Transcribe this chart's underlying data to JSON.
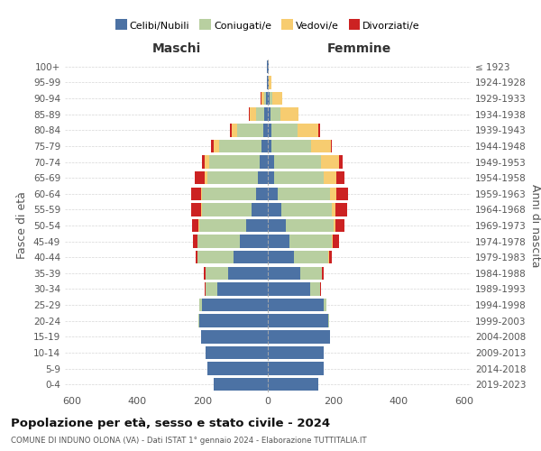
{
  "age_groups": [
    "0-4",
    "5-9",
    "10-14",
    "15-19",
    "20-24",
    "25-29",
    "30-34",
    "35-39",
    "40-44",
    "45-49",
    "50-54",
    "55-59",
    "60-64",
    "65-69",
    "70-74",
    "75-79",
    "80-84",
    "85-89",
    "90-94",
    "95-99",
    "100+"
  ],
  "birth_years": [
    "2019-2023",
    "2014-2018",
    "2009-2013",
    "2004-2008",
    "1999-2003",
    "1994-1998",
    "1989-1993",
    "1984-1988",
    "1979-1983",
    "1974-1978",
    "1969-1973",
    "1964-1968",
    "1959-1963",
    "1954-1958",
    "1949-1953",
    "1944-1948",
    "1939-1943",
    "1934-1938",
    "1929-1933",
    "1924-1928",
    "≤ 1923"
  ],
  "colors": {
    "celibe": "#4c72a4",
    "coniugato": "#b8cfa0",
    "vedovo": "#f7cc70",
    "divorziato": "#cc2222"
  },
  "maschi": {
    "celibe": [
      165,
      185,
      190,
      205,
      210,
      200,
      155,
      120,
      105,
      85,
      65,
      50,
      35,
      30,
      25,
      20,
      15,
      10,
      5,
      2,
      2
    ],
    "coniugato": [
      0,
      0,
      0,
      0,
      2,
      10,
      35,
      70,
      110,
      130,
      145,
      150,
      165,
      155,
      155,
      130,
      80,
      25,
      5,
      0,
      0
    ],
    "vedovo": [
      0,
      0,
      0,
      0,
      0,
      0,
      0,
      0,
      0,
      0,
      2,
      3,
      5,
      8,
      12,
      15,
      15,
      20,
      10,
      2,
      0
    ],
    "divorziato": [
      0,
      0,
      0,
      0,
      0,
      0,
      2,
      5,
      5,
      15,
      20,
      30,
      30,
      30,
      10,
      8,
      5,
      2,
      2,
      0,
      0
    ]
  },
  "femmine": {
    "nubile": [
      155,
      170,
      170,
      190,
      185,
      170,
      130,
      100,
      80,
      65,
      55,
      40,
      30,
      20,
      18,
      12,
      10,
      8,
      5,
      2,
      2
    ],
    "coniugata": [
      0,
      0,
      0,
      0,
      2,
      8,
      30,
      65,
      105,
      130,
      145,
      155,
      160,
      150,
      145,
      120,
      80,
      30,
      8,
      2,
      0
    ],
    "vedova": [
      0,
      0,
      0,
      0,
      0,
      0,
      0,
      0,
      2,
      4,
      8,
      12,
      20,
      40,
      55,
      60,
      65,
      55,
      30,
      8,
      0
    ],
    "divorziata": [
      0,
      0,
      0,
      0,
      0,
      0,
      2,
      5,
      8,
      20,
      25,
      35,
      35,
      25,
      10,
      5,
      5,
      2,
      2,
      0,
      0
    ]
  },
  "xlim": 620,
  "title": "Popolazione per età, sesso e stato civile - 2024",
  "subtitle": "COMUNE DI INDUNO OLONA (VA) - Dati ISTAT 1° gennaio 2024 - Elaborazione TUTTITALIA.IT",
  "ylabel_left": "Fasce di età",
  "ylabel_right": "Anni di nascita"
}
